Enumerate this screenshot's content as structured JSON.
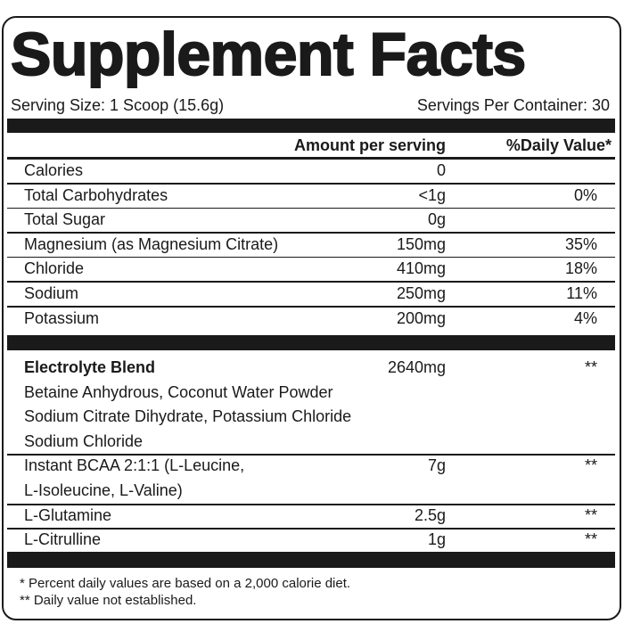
{
  "title": "Supplement Facts",
  "serving_size": "Serving Size: 1 Scoop (15.6g)",
  "servings_per_container": "Servings Per Container: 30",
  "header": {
    "amount": "Amount per serving",
    "dv": "%Daily Value*"
  },
  "nutrients": [
    {
      "name": "Calories",
      "amount": "0",
      "dv": ""
    },
    {
      "name": "Total Carbohydrates",
      "amount": "<1g",
      "dv": "0%"
    },
    {
      "name": "Total Sugar",
      "amount": "0g",
      "dv": ""
    },
    {
      "name": "Magnesium (as Magnesium Citrate)",
      "amount": "150mg",
      "dv": "35%"
    },
    {
      "name": "Chloride",
      "amount": "410mg",
      "dv": "18%"
    },
    {
      "name": "Sodium",
      "amount": "250mg",
      "dv": "11%"
    },
    {
      "name": "Potassium",
      "amount": "200mg",
      "dv": "4%"
    }
  ],
  "blend": {
    "name": "Electrolyte Blend",
    "amount": "2640mg",
    "dv": "**",
    "lines": [
      "Betaine Anhydrous, Coconut Water Powder",
      "Sodium Citrate Dihydrate, Potassium Chloride",
      "Sodium Chloride"
    ]
  },
  "others": [
    {
      "name": "Instant BCAA 2:1:1 (L-Leucine,",
      "name2": "L-Isoleucine, L-Valine)",
      "amount": "7g",
      "dv": "**"
    },
    {
      "name": "L-Glutamine",
      "amount": "2.5g",
      "dv": "**"
    },
    {
      "name": "L-Citrulline",
      "amount": "1g",
      "dv": "**"
    }
  ],
  "footnotes": [
    "* Percent daily values are based on a 2,000 calorie diet.",
    "** Daily value not established."
  ]
}
